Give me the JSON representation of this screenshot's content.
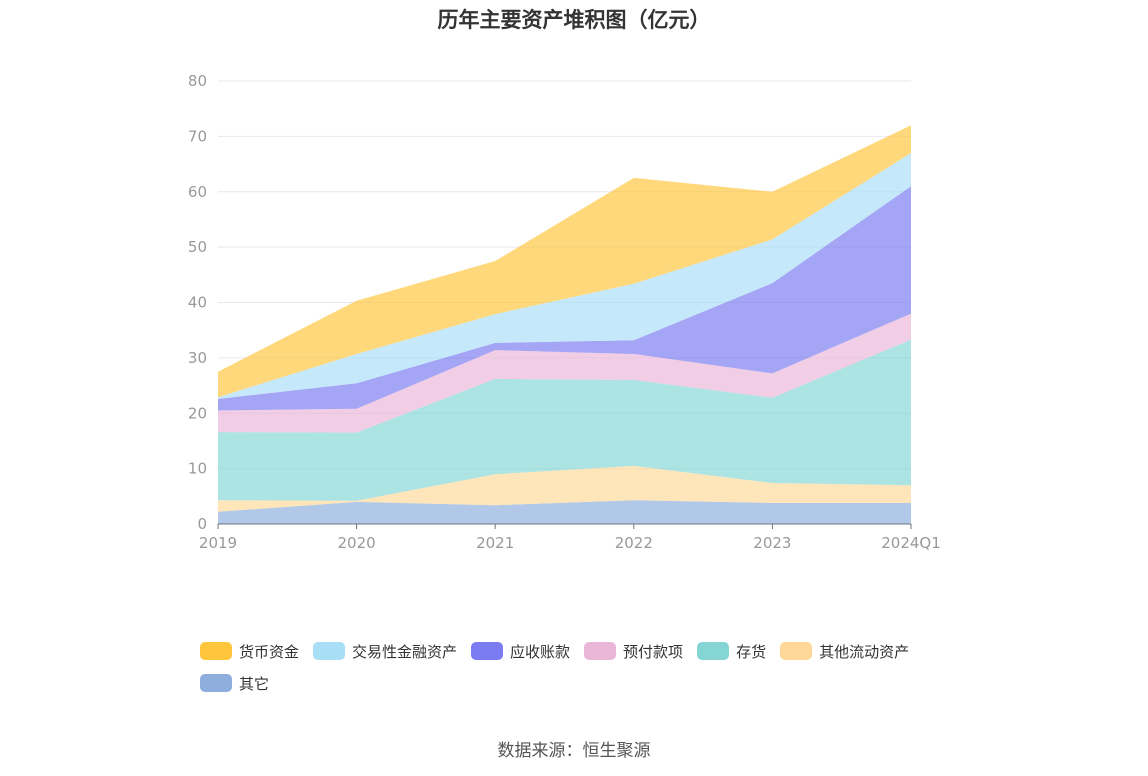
{
  "title": "历年主要资产堆积图（亿元）",
  "source": "数据来源：恒生聚源",
  "chart_data": {
    "type": "area",
    "stacked": true,
    "title": "历年主要资产堆积图（亿元）",
    "xlabel": "",
    "ylabel": "",
    "categories": [
      "2019",
      "2020",
      "2021",
      "2022",
      "2023",
      "2024Q1"
    ],
    "ylim": [
      0,
      80
    ],
    "yticks": [
      0,
      10,
      20,
      30,
      40,
      50,
      60,
      70,
      80
    ],
    "grid": true,
    "legend_position": "bottom",
    "series": [
      {
        "name": "其它",
        "color": "#8eaedd",
        "values": [
          2.2,
          4.0,
          3.4,
          4.3,
          3.8,
          3.8
        ]
      },
      {
        "name": "其他流动资产",
        "color": "#ffd899",
        "values": [
          2.1,
          0.2,
          5.6,
          6.2,
          3.6,
          3.2
        ]
      },
      {
        "name": "存货",
        "color": "#85d5d5",
        "values": [
          12.3,
          12.3,
          17.2,
          15.5,
          15.4,
          26.3
        ]
      },
      {
        "name": "预付款项",
        "color": "#eab7d9",
        "values": [
          3.9,
          4.3,
          5.2,
          4.7,
          4.4,
          4.7
        ]
      },
      {
        "name": "应收账款",
        "color": "#7b7bf2",
        "values": [
          2.1,
          4.6,
          1.3,
          2.5,
          16.3,
          23.0
        ]
      },
      {
        "name": "交易性金融资产",
        "color": "#a9def7",
        "values": [
          0.3,
          5.3,
          5.2,
          10.2,
          7.9,
          6.0
        ]
      },
      {
        "name": "货币资金",
        "color": "#ffc63d",
        "values": [
          4.6,
          9.6,
          9.6,
          19.1,
          8.6,
          5.0
        ]
      }
    ]
  },
  "legend": [
    {
      "label": "货币资金",
      "color": "#ffc63d"
    },
    {
      "label": "交易性金融资产",
      "color": "#a9def7"
    },
    {
      "label": "应收账款",
      "color": "#7b7bf2"
    },
    {
      "label": "预付款项",
      "color": "#eab7d9"
    },
    {
      "label": "存货",
      "color": "#85d5d5"
    },
    {
      "label": "其他流动资产",
      "color": "#ffd899"
    },
    {
      "label": "其它",
      "color": "#8eaedd"
    }
  ]
}
